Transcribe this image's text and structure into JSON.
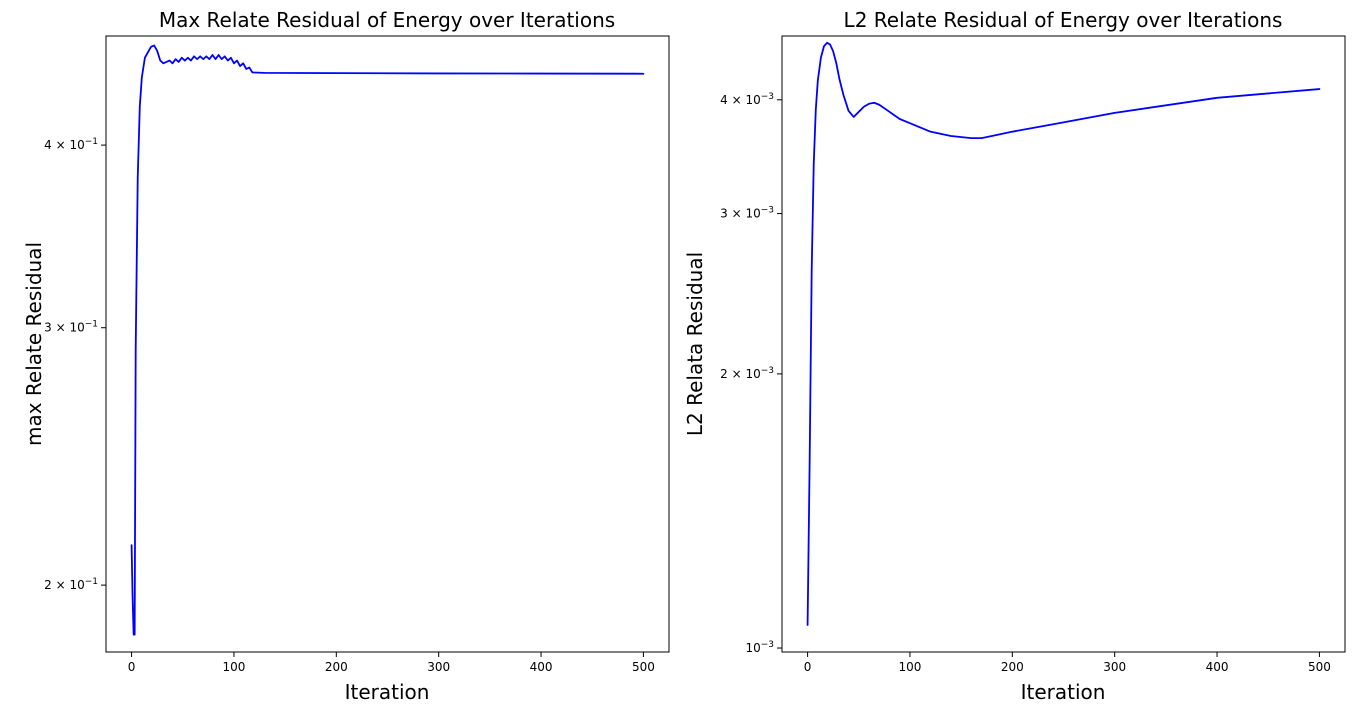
{
  "chart_data": [
    {
      "type": "line",
      "title": "Max Relate Residual of Energy over Iterations",
      "xlabel": "Iteration",
      "ylabel": "max Relate Residual",
      "xlim": [
        -25,
        525
      ],
      "ylim": [
        0.18,
        0.475
      ],
      "yscale": "log",
      "grid": false,
      "xticks": [
        0,
        100,
        200,
        300,
        400,
        500
      ],
      "xtick_labels": [
        "0",
        "100",
        "200",
        "300",
        "400",
        "500"
      ],
      "yticks": [
        0.2,
        0.3,
        0.4
      ],
      "ytick_bases": [
        "2 × 10",
        "3 × 10",
        "4 × 10"
      ],
      "ytick_exps": [
        "−1",
        "−1",
        "−1"
      ],
      "series": [
        {
          "color": "#0000ff",
          "x": [
            0,
            1,
            2,
            3,
            4,
            6,
            8,
            10,
            13,
            16,
            19,
            22,
            25,
            28,
            31,
            34,
            37,
            40,
            43,
            46,
            49,
            52,
            55,
            58,
            61,
            64,
            67,
            70,
            73,
            76,
            79,
            82,
            85,
            88,
            91,
            94,
            97,
            100,
            103,
            106,
            109,
            112,
            115,
            118,
            130,
            200,
            300,
            400,
            500
          ],
          "y": [
            0.213,
            0.196,
            0.185,
            0.185,
            0.29,
            0.38,
            0.425,
            0.445,
            0.459,
            0.463,
            0.467,
            0.468,
            0.464,
            0.457,
            0.455,
            0.456,
            0.457,
            0.455,
            0.458,
            0.456,
            0.459,
            0.457,
            0.459,
            0.457,
            0.46,
            0.458,
            0.46,
            0.458,
            0.46,
            0.458,
            0.461,
            0.458,
            0.461,
            0.458,
            0.46,
            0.457,
            0.459,
            0.455,
            0.457,
            0.453,
            0.455,
            0.451,
            0.452,
            0.4485,
            0.4482,
            0.448,
            0.4478,
            0.4477,
            0.4476
          ]
        }
      ]
    },
    {
      "type": "line",
      "title": "L2 Relate Residual of Energy over Iterations",
      "xlabel": "Iteration",
      "ylabel": "L2 Relata Residual",
      "xlim": [
        -25,
        525
      ],
      "ylim": [
        0.00099,
        0.0047
      ],
      "yscale": "log",
      "grid": false,
      "xticks": [
        0,
        100,
        200,
        300,
        400,
        500
      ],
      "xtick_labels": [
        "0",
        "100",
        "200",
        "300",
        "400",
        "500"
      ],
      "yticks": [
        0.001,
        0.002,
        0.003,
        0.004
      ],
      "ytick_bases": [
        "10",
        "2 × 10",
        "3 × 10",
        "4 × 10"
      ],
      "ytick_exps": [
        "−3",
        "−3",
        "−3",
        "−3"
      ],
      "series": [
        {
          "color": "#0000ff",
          "x": [
            0,
            2,
            4,
            6,
            8,
            10,
            13,
            16,
            19,
            22,
            25,
            28,
            31,
            35,
            40,
            45,
            50,
            55,
            60,
            65,
            70,
            80,
            90,
            100,
            120,
            140,
            160,
            170,
            180,
            200,
            240,
            300,
            400,
            500
          ],
          "y": [
            0.00106,
            0.0016,
            0.0026,
            0.0034,
            0.0039,
            0.0042,
            0.00445,
            0.00458,
            0.00462,
            0.0046,
            0.00452,
            0.00439,
            0.00422,
            0.00405,
            0.00389,
            0.00383,
            0.00388,
            0.00393,
            0.00396,
            0.00397,
            0.00395,
            0.00388,
            0.00381,
            0.00377,
            0.00369,
            0.00365,
            0.00363,
            0.00363,
            0.00365,
            0.00369,
            0.00376,
            0.00387,
            0.00402,
            0.00411
          ]
        }
      ]
    }
  ]
}
